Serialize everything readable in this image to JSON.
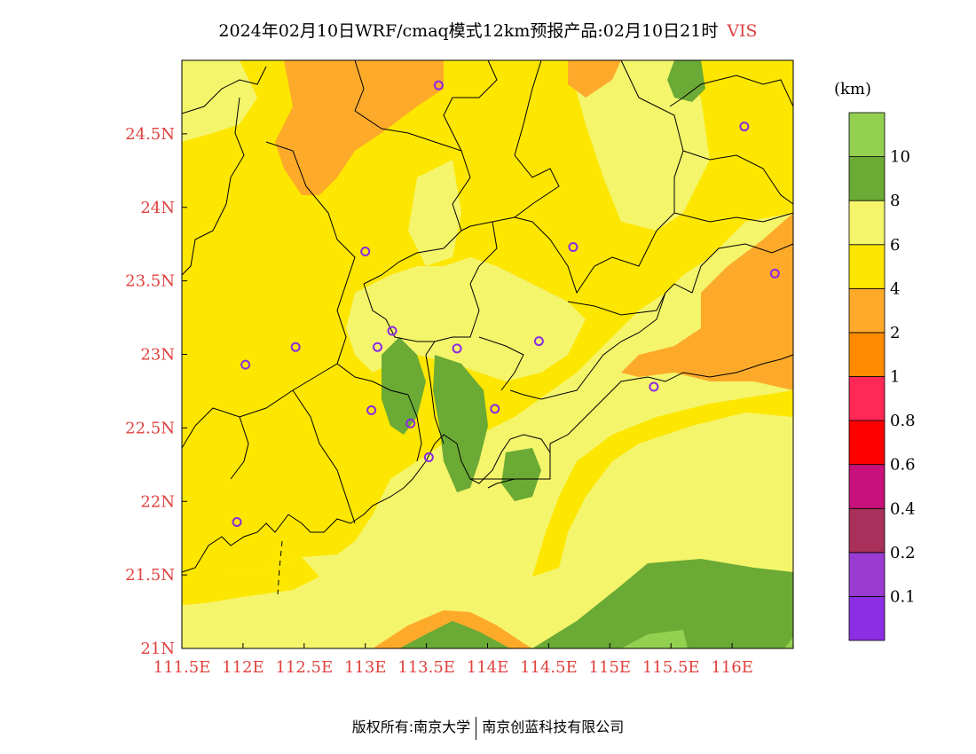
{
  "title": {
    "main": "2024年02月10日WRF/cmaq模式12km预报产品:02月10日21时",
    "variable": "VIS"
  },
  "footer": {
    "left": "版权所有:南京大学",
    "right": "南京创蓝科技有限公司"
  },
  "map": {
    "lon_range": [
      111.5,
      116.5
    ],
    "lat_range": [
      21.0,
      25.0
    ],
    "x_ticks": [
      {
        "lon": 111.5,
        "label": "111.5E"
      },
      {
        "lon": 112.0,
        "label": "112E"
      },
      {
        "lon": 112.5,
        "label": "112.5E"
      },
      {
        "lon": 113.0,
        "label": "113E"
      },
      {
        "lon": 113.5,
        "label": "113.5E"
      },
      {
        "lon": 114.0,
        "label": "114E"
      },
      {
        "lon": 114.5,
        "label": "114.5E"
      },
      {
        "lon": 115.0,
        "label": "115E"
      },
      {
        "lon": 115.5,
        "label": "115.5E"
      },
      {
        "lon": 116.0,
        "label": "116E"
      }
    ],
    "y_ticks": [
      {
        "lat": 21.0,
        "label": "21N"
      },
      {
        "lat": 21.5,
        "label": "21.5N"
      },
      {
        "lat": 22.0,
        "label": "22N"
      },
      {
        "lat": 22.5,
        "label": "22.5N"
      },
      {
        "lat": 23.0,
        "label": "23N"
      },
      {
        "lat": 23.5,
        "label": "23.5N"
      },
      {
        "lat": 24.0,
        "label": "24N"
      },
      {
        "lat": 24.5,
        "label": "24.5N"
      }
    ],
    "stations": [
      {
        "lon": 113.6,
        "lat": 24.83
      },
      {
        "lon": 116.1,
        "lat": 24.55
      },
      {
        "lon": 113.0,
        "lat": 23.7
      },
      {
        "lon": 114.7,
        "lat": 23.73
      },
      {
        "lon": 116.35,
        "lat": 23.55
      },
      {
        "lon": 112.43,
        "lat": 23.05
      },
      {
        "lon": 113.22,
        "lat": 23.16
      },
      {
        "lon": 113.1,
        "lat": 23.05
      },
      {
        "lon": 113.75,
        "lat": 23.04
      },
      {
        "lon": 114.42,
        "lat": 23.09
      },
      {
        "lon": 112.02,
        "lat": 22.93
      },
      {
        "lon": 115.36,
        "lat": 22.78
      },
      {
        "lon": 113.05,
        "lat": 22.62
      },
      {
        "lon": 113.37,
        "lat": 22.53
      },
      {
        "lon": 114.06,
        "lat": 22.63
      },
      {
        "lon": 113.52,
        "lat": 22.3
      },
      {
        "lon": 111.95,
        "lat": 21.86
      }
    ]
  },
  "legend": {
    "unit": "(km)",
    "bins": [
      {
        "color": "#8c2ee3",
        "label": ""
      },
      {
        "color": "#9a3bd1",
        "label": "0.1"
      },
      {
        "color": "#a8305a",
        "label": "0.2"
      },
      {
        "color": "#c8117a",
        "label": "0.4"
      },
      {
        "color": "#ff0000",
        "label": "0.6"
      },
      {
        "color": "#ff2856",
        "label": "0.8"
      },
      {
        "color": "#ff8a00",
        "label": "1"
      },
      {
        "color": "#fdaa2a",
        "label": "2"
      },
      {
        "color": "#fde600",
        "label": "4"
      },
      {
        "color": "#f4f56b",
        "label": "6"
      },
      {
        "color": "#6aaa35",
        "label": "8"
      },
      {
        "color": "#93d050",
        "label": "10"
      }
    ]
  },
  "palette": {
    "bg_light": "#f4f56b",
    "yellow": "#fde600",
    "orange": "#fdaa2a",
    "green": "#6aaa35",
    "light_green": "#93d050",
    "station": "#8a2be2",
    "axis_label": "#e0413e"
  }
}
